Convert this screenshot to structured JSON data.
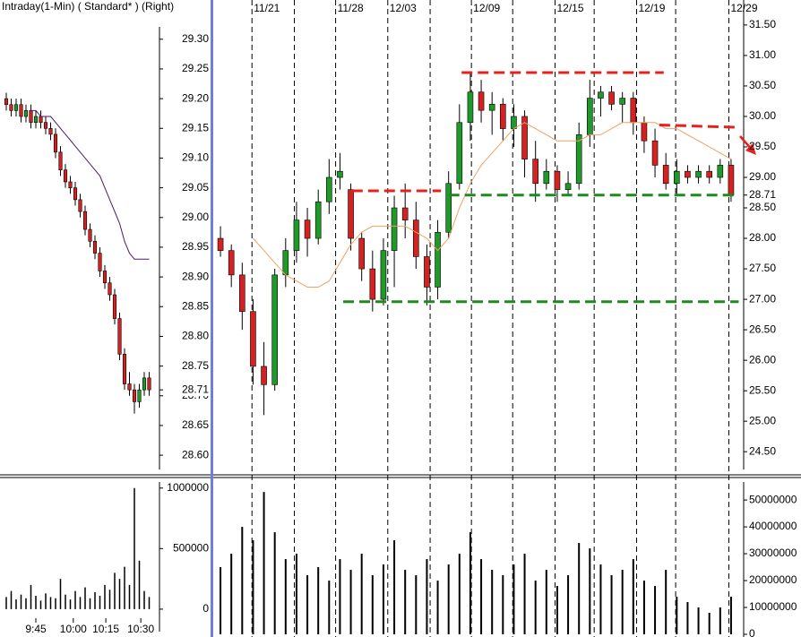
{
  "chart_data": [
    {
      "type": "candlestick",
      "title": "Intraday(1-Min) ( Standard* )  (Right)",
      "ylim": [
        28.57,
        29.366
      ],
      "yticks": [
        {
          "value": 29.3,
          "label": "29.30"
        },
        {
          "value": 29.25,
          "label": "29.25"
        },
        {
          "value": 29.2,
          "label": "29.20"
        },
        {
          "value": 29.15,
          "label": "29.15"
        },
        {
          "value": 29.1,
          "label": "29.10"
        },
        {
          "value": 29.05,
          "label": "29.05"
        },
        {
          "value": 29.0,
          "label": "29.00"
        },
        {
          "value": 28.95,
          "label": "28.95"
        },
        {
          "value": 28.9,
          "label": "28.90"
        },
        {
          "value": 28.85,
          "label": "28.85"
        },
        {
          "value": 28.8,
          "label": "28.80"
        },
        {
          "value": 28.75,
          "label": "28.75"
        },
        {
          "value": 28.7,
          "label": "28.70"
        },
        {
          "value": 28.65,
          "label": "28.65"
        },
        {
          "value": 28.6,
          "label": "28.60"
        }
      ],
      "last_price": 28.71,
      "up_color": "#1f9a2a",
      "down_color": "#d42222",
      "ohlc": [
        [
          29.2,
          29.21,
          29.18,
          29.19
        ],
        [
          29.19,
          29.2,
          29.17,
          29.18
        ],
        [
          29.18,
          29.2,
          29.17,
          29.19
        ],
        [
          29.19,
          29.2,
          29.16,
          29.17
        ],
        [
          29.17,
          29.19,
          29.16,
          29.18
        ],
        [
          29.18,
          29.19,
          29.15,
          29.16
        ],
        [
          29.16,
          29.18,
          29.15,
          29.17
        ],
        [
          29.17,
          29.18,
          29.15,
          29.16
        ],
        [
          29.16,
          29.17,
          29.14,
          29.15
        ],
        [
          29.15,
          29.16,
          29.13,
          29.14
        ],
        [
          29.14,
          29.15,
          29.1,
          29.11
        ],
        [
          29.11,
          29.12,
          29.07,
          29.08
        ],
        [
          29.08,
          29.09,
          29.05,
          29.06
        ],
        [
          29.06,
          29.07,
          29.04,
          29.05
        ],
        [
          29.05,
          29.06,
          29.02,
          29.03
        ],
        [
          29.03,
          29.04,
          29.0,
          29.01
        ],
        [
          29.01,
          29.02,
          28.97,
          28.98
        ],
        [
          28.98,
          28.99,
          28.95,
          28.96
        ],
        [
          28.96,
          28.97,
          28.93,
          28.94
        ],
        [
          28.94,
          28.95,
          28.9,
          28.91
        ],
        [
          28.91,
          28.92,
          28.88,
          28.89
        ],
        [
          28.89,
          28.9,
          28.86,
          28.87
        ],
        [
          28.87,
          28.88,
          28.82,
          28.83
        ],
        [
          28.83,
          28.84,
          28.76,
          28.77
        ],
        [
          28.77,
          28.78,
          28.71,
          28.72
        ],
        [
          28.72,
          28.74,
          28.7,
          28.71
        ],
        [
          28.71,
          28.72,
          28.67,
          28.69
        ],
        [
          28.69,
          28.72,
          28.68,
          28.71
        ],
        [
          28.71,
          28.74,
          28.7,
          28.73
        ],
        [
          28.73,
          28.74,
          28.7,
          28.71
        ]
      ],
      "ma": {
        "color": "#4b1a6e",
        "values": [
          null,
          null,
          null,
          null,
          null,
          29.18,
          29.18,
          29.17,
          29.17,
          29.17,
          29.16,
          29.15,
          29.14,
          29.13,
          29.12,
          29.11,
          29.1,
          29.09,
          29.08,
          29.07,
          29.05,
          29.03,
          29.01,
          28.99,
          28.96,
          28.94,
          28.93,
          28.93,
          28.93,
          28.93
        ]
      }
    },
    {
      "type": "bar",
      "color": "#000000",
      "ylim": [
        -230000,
        1050000
      ],
      "yticks": [
        1000000,
        500000,
        0
      ],
      "xticks": [
        {
          "value": 6,
          "label": "9:45"
        },
        {
          "value": 13.6,
          "label": "10:00"
        },
        {
          "value": 20.2,
          "label": "10:15"
        },
        {
          "value": 27.3,
          "label": "10:30"
        }
      ],
      "values": [
        100000,
        150000,
        80000,
        120000,
        90000,
        200000,
        110000,
        70000,
        130000,
        100000,
        90000,
        250000,
        120000,
        80000,
        150000,
        100000,
        180000,
        90000,
        140000,
        110000,
        200000,
        160000,
        300000,
        250000,
        350000,
        200000,
        1000000,
        400000,
        150000,
        100000
      ]
    },
    {
      "type": "candlestick",
      "ylim": [
        24.15,
        31.91
      ],
      "yticks": [
        {
          "value": 31.5,
          "label": "31.50"
        },
        {
          "value": 31.0,
          "label": "31.00"
        },
        {
          "value": 30.5,
          "label": "30.50"
        },
        {
          "value": 30.0,
          "label": "30.00"
        },
        {
          "value": 29.5,
          "label": "29.50"
        },
        {
          "value": 29.0,
          "label": "29.00"
        },
        {
          "value": 28.5,
          "label": "28.50"
        },
        {
          "value": 28.0,
          "label": "28.00"
        },
        {
          "value": 27.5,
          "label": "27.50"
        },
        {
          "value": 27.0,
          "label": "27.00"
        },
        {
          "value": 26.5,
          "label": "26.50"
        },
        {
          "value": 26.0,
          "label": "26.00"
        },
        {
          "value": 25.5,
          "label": "25.50"
        },
        {
          "value": 25.0,
          "label": "25.00"
        },
        {
          "value": 24.5,
          "label": "24.50"
        }
      ],
      "last_price": 28.71,
      "xticks": [
        {
          "value": 2.9,
          "label": "11/21"
        },
        {
          "value": 10.6,
          "label": "11/28"
        },
        {
          "value": 15.4,
          "label": "12/03"
        },
        {
          "value": 23.1,
          "label": "12/09"
        },
        {
          "value": 30.8,
          "label": "12/15"
        },
        {
          "value": 38.3,
          "label": "12/19"
        },
        {
          "value": 46.8,
          "label": "12/29"
        }
      ],
      "date_lines": [
        2.9,
        6.8,
        10.6,
        15.4,
        19.3,
        23.1,
        26.9,
        30.8,
        34.4,
        38.3,
        41.9,
        46.8
      ],
      "up_color": "#1f9a2a",
      "down_color": "#d42222",
      "ohlc": [
        [
          28.0,
          28.2,
          27.7,
          27.8
        ],
        [
          27.8,
          27.9,
          27.2,
          27.4
        ],
        [
          27.4,
          27.6,
          26.5,
          26.8
        ],
        [
          26.8,
          27.0,
          25.6,
          25.9
        ],
        [
          25.9,
          26.3,
          25.1,
          25.6
        ],
        [
          25.6,
          27.5,
          25.5,
          27.4
        ],
        [
          27.4,
          28.0,
          27.2,
          27.8
        ],
        [
          27.8,
          28.6,
          27.6,
          28.3
        ],
        [
          28.3,
          28.5,
          27.7,
          28.0
        ],
        [
          28.0,
          28.8,
          27.9,
          28.6
        ],
        [
          28.6,
          29.3,
          28.4,
          29.0
        ],
        [
          29.0,
          29.4,
          28.8,
          29.1
        ],
        [
          28.8,
          28.9,
          27.8,
          28.0
        ],
        [
          28.0,
          28.1,
          27.3,
          27.5
        ],
        [
          27.5,
          27.8,
          26.8,
          27.0
        ],
        [
          27.0,
          28.0,
          26.9,
          27.8
        ],
        [
          27.8,
          28.7,
          27.2,
          28.5
        ],
        [
          28.5,
          28.9,
          28.0,
          28.3
        ],
        [
          28.3,
          28.6,
          27.5,
          27.7
        ],
        [
          27.7,
          27.9,
          26.9,
          27.2
        ],
        [
          27.2,
          28.3,
          27.0,
          28.1
        ],
        [
          28.1,
          29.1,
          28.0,
          28.9
        ],
        [
          28.9,
          30.2,
          28.8,
          29.9
        ],
        [
          29.9,
          30.7,
          29.6,
          30.4
        ],
        [
          30.4,
          30.6,
          29.9,
          30.1
        ],
        [
          30.1,
          30.4,
          29.7,
          30.2
        ],
        [
          30.2,
          30.3,
          29.6,
          29.8
        ],
        [
          29.8,
          30.2,
          29.5,
          30.0
        ],
        [
          30.0,
          30.1,
          29.0,
          29.3
        ],
        [
          29.3,
          29.6,
          28.6,
          28.9
        ],
        [
          28.9,
          29.3,
          28.8,
          29.1
        ],
        [
          29.1,
          29.2,
          28.6,
          28.8
        ],
        [
          28.8,
          29.1,
          28.7,
          28.9
        ],
        [
          28.9,
          29.9,
          28.8,
          29.7
        ],
        [
          29.7,
          30.6,
          29.5,
          30.3
        ],
        [
          30.3,
          30.5,
          30.0,
          30.4
        ],
        [
          30.4,
          30.5,
          30.1,
          30.2
        ],
        [
          30.2,
          30.4,
          29.9,
          30.3
        ],
        [
          30.3,
          30.4,
          29.7,
          29.9
        ],
        [
          29.9,
          30.0,
          29.4,
          29.6
        ],
        [
          29.6,
          29.8,
          29.0,
          29.2
        ],
        [
          29.2,
          29.4,
          28.8,
          28.9
        ],
        [
          28.9,
          29.3,
          28.7,
          29.1
        ],
        [
          29.1,
          29.2,
          28.9,
          29.0
        ],
        [
          29.0,
          29.2,
          28.9,
          29.1
        ],
        [
          29.1,
          29.2,
          28.9,
          29.0
        ],
        [
          29.0,
          29.3,
          28.9,
          29.2
        ],
        [
          29.2,
          29.3,
          28.6,
          28.71
        ]
      ],
      "ma": {
        "color": "#f0a060",
        "values": [
          null,
          null,
          null,
          28.0,
          27.8,
          27.6,
          27.4,
          27.3,
          27.2,
          27.2,
          27.3,
          27.6,
          27.9,
          28.1,
          28.2,
          28.2,
          28.2,
          28.2,
          28.1,
          28.0,
          27.8,
          28.0,
          28.5,
          28.9,
          29.2,
          29.4,
          29.6,
          29.8,
          29.9,
          29.8,
          29.7,
          29.6,
          29.6,
          29.6,
          29.7,
          29.7,
          29.8,
          29.9,
          29.9,
          29.9,
          29.9,
          29.8,
          29.8,
          29.7,
          29.6,
          29.5,
          29.4,
          29.3
        ]
      },
      "annotations": [
        {
          "x": [
            22.2,
            40.8
          ],
          "y": [
            30.72,
            30.72
          ],
          "color": "#e8201c"
        },
        {
          "x": [
            12.1,
            20.3
          ],
          "y": [
            28.78,
            28.78
          ],
          "color": "#e8201c"
        },
        {
          "x": [
            40.4,
            47.8
          ],
          "y": [
            29.86,
            29.82
          ],
          "color": "#e8201c"
        },
        {
          "x": [
            21.0,
            47.5
          ],
          "y": [
            28.71,
            28.71
          ],
          "color": "#1e8a1e"
        },
        {
          "x": [
            11.3,
            47.7
          ],
          "y": [
            26.96,
            26.96
          ],
          "color": "#1e8a1e"
        }
      ]
    },
    {
      "type": "bar",
      "color": "#000000",
      "ylim": [
        -1000000,
        56700000
      ],
      "yticks": [
        50000000,
        40000000,
        30000000,
        20000000,
        10000000,
        0
      ],
      "values": [
        25000000,
        30000000,
        40000000,
        35000000,
        53000000,
        38000000,
        28000000,
        30000000,
        22000000,
        25000000,
        20000000,
        28000000,
        24000000,
        30000000,
        22000000,
        26000000,
        35000000,
        24000000,
        22000000,
        28000000,
        20000000,
        26000000,
        30000000,
        38000000,
        28000000,
        24000000,
        22000000,
        26000000,
        30000000,
        20000000,
        24000000,
        18000000,
        22000000,
        34000000,
        32000000,
        26000000,
        22000000,
        24000000,
        28000000,
        20000000,
        18000000,
        24000000,
        14000000,
        12000000,
        10000000,
        8000000,
        10000000,
        14000000
      ]
    }
  ]
}
